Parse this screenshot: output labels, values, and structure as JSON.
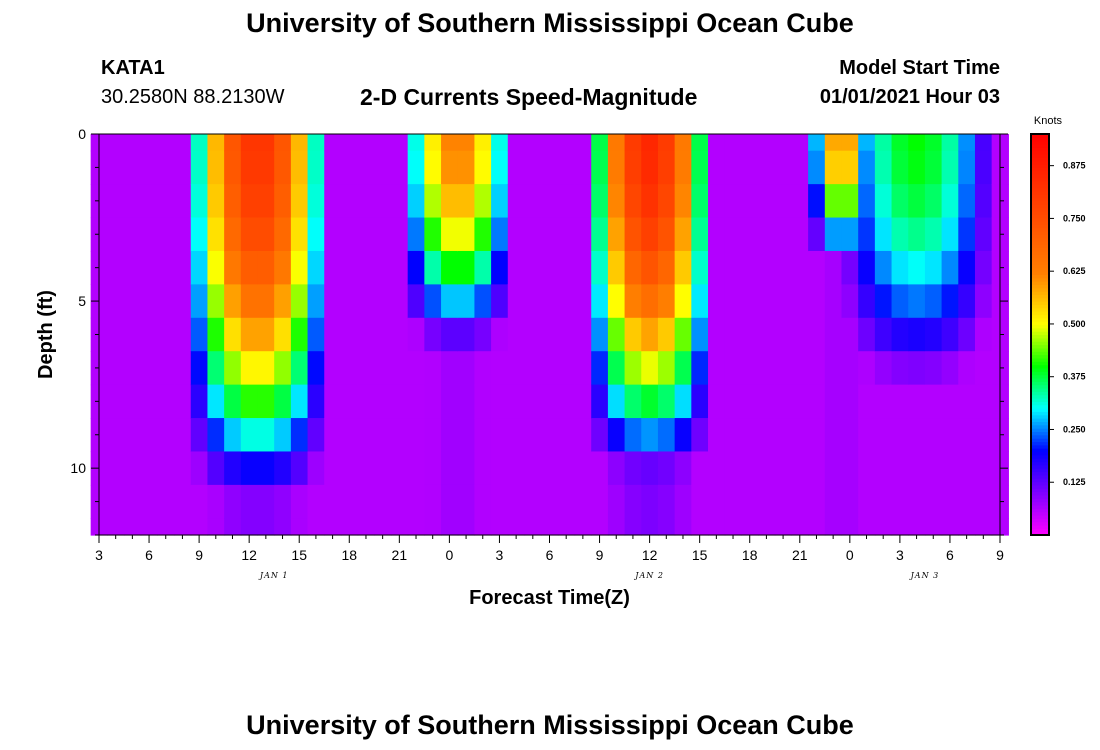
{
  "page": {
    "title_top": "University of Southern Mississippi Ocean Cube",
    "title_bottom": "University of Southern Mississippi Ocean Cube",
    "station": "KATA1",
    "coords": "30.2580N 88.2130W",
    "chart_title": "2-D Currents Speed-Magnitude",
    "model_label": "Model Start Time",
    "model_time": "01/01/2021 Hour 03"
  },
  "chart_data": {
    "type": "heatmap",
    "title": "2-D Currents Speed-Magnitude",
    "xlabel": "Forecast Time(Z)",
    "ylabel": "Depth (ft)",
    "x_tick_labels": [
      "3",
      "6",
      "9",
      "12",
      "15",
      "18",
      "21",
      "0",
      "3",
      "6",
      "9",
      "12",
      "15",
      "18",
      "21",
      "0",
      "3",
      "6",
      "9"
    ],
    "x_hours": [
      3,
      6,
      9,
      12,
      15,
      18,
      21,
      24,
      27,
      30,
      33,
      36,
      39,
      42,
      45,
      48,
      51,
      54,
      57
    ],
    "xlim_hours": [
      3,
      57
    ],
    "day_labels": [
      {
        "label": "JAN 1",
        "hour": 13.5
      },
      {
        "label": "JAN 2",
        "hour": 36
      },
      {
        "label": "JAN 3",
        "hour": 52.5
      }
    ],
    "y_tick_labels": [
      "0",
      "5",
      "10"
    ],
    "y_ticks": [
      0,
      5,
      10
    ],
    "ylim": [
      0,
      12
    ],
    "colorbar": {
      "title": "Knots",
      "range": [
        0,
        0.95
      ],
      "tick_labels": [
        "0.125",
        "0.250",
        "0.375",
        "0.500",
        "0.625",
        "0.750",
        "0.875"
      ],
      "tick_values": [
        0.125,
        0.25,
        0.375,
        0.5,
        0.625,
        0.75,
        0.875
      ]
    },
    "colors": {
      "magenta": "#ff00ff",
      "violet": "#8000ff",
      "blue": "#0000ff",
      "cyan": "#00ffff",
      "green": "#00ff00",
      "yellow": "#ffff00",
      "orange": "#ff8000",
      "red": "#ff0000"
    },
    "time_columns_hours": [
      3,
      4,
      5,
      6,
      7,
      8,
      9,
      10,
      11,
      12,
      13,
      14,
      15,
      16,
      17,
      18,
      19,
      20,
      21,
      22,
      23,
      24,
      25,
      26,
      27,
      28,
      29,
      30,
      31,
      32,
      33,
      34,
      35,
      36,
      37,
      38,
      39,
      40,
      41,
      42,
      43,
      44,
      45,
      46,
      47,
      48,
      49,
      50,
      51,
      52,
      53,
      54,
      55,
      56,
      57
    ],
    "depth_rows_ft": [
      0,
      1,
      2,
      3,
      4,
      5,
      6,
      7,
      8,
      9,
      10,
      11,
      12
    ],
    "tidal_events": [
      {
        "center_hour": 12.5,
        "peak_knots": 0.82,
        "half_width_hours": 4.5,
        "depth_decay_ft": 8.5
      },
      {
        "center_hour": 24.5,
        "peak_knots": 0.63,
        "half_width_hours": 3.5,
        "depth_decay_ft": 5.0
      },
      {
        "center_hour": 36.0,
        "peak_knots": 0.85,
        "half_width_hours": 4.0,
        "depth_decay_ft": 8.0
      },
      {
        "center_hour": 47.5,
        "peak_knots": 0.62,
        "half_width_hours": 2.0,
        "depth_decay_ft": 3.0
      },
      {
        "center_hour": 52.0,
        "peak_knots": 0.4,
        "half_width_hours": 5.0,
        "depth_decay_ft": 6.0
      }
    ],
    "background_knots": 0.06
  }
}
